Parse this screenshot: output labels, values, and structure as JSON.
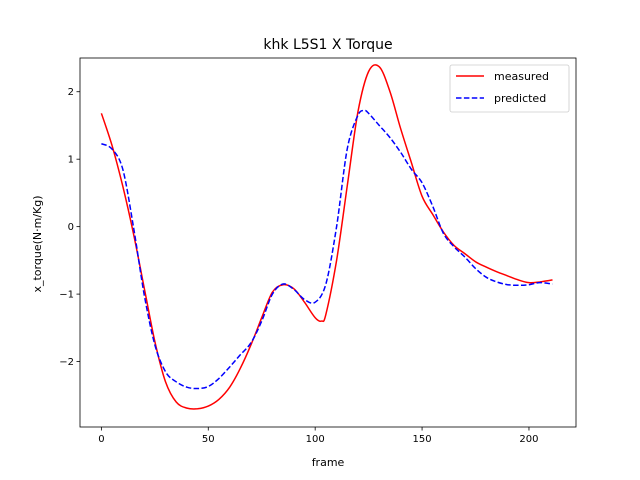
{
  "chart_data": {
    "type": "line",
    "title": "khk L5S1 X Torque",
    "xlabel": "frame",
    "ylabel": "x_torque(N·m/Kg)",
    "xlim": [
      -10,
      222
    ],
    "ylim": [
      -2.97,
      2.5
    ],
    "xticks": [
      0,
      50,
      100,
      150,
      200
    ],
    "xtick_labels": [
      "0",
      "50",
      "100",
      "150",
      "200"
    ],
    "yticks": [
      -2,
      -1,
      0,
      1,
      2
    ],
    "ytick_labels": [
      "−2",
      "−1",
      "0",
      "1",
      "2"
    ],
    "grid": false,
    "legend": "top-right",
    "series": [
      {
        "name": "measured",
        "color": "#ff0000",
        "style": "solid",
        "x": [
          0,
          5,
          10,
          15,
          20,
          25,
          30,
          35,
          40,
          45,
          50,
          55,
          60,
          65,
          70,
          75,
          80,
          85,
          90,
          95,
          100,
          103,
          105,
          110,
          115,
          120,
          125,
          130,
          135,
          140,
          145,
          150,
          155,
          160,
          165,
          170,
          175,
          180,
          185,
          190,
          195,
          200,
          205,
          211
        ],
        "y": [
          1.68,
          1.2,
          0.6,
          -0.1,
          -0.9,
          -1.7,
          -2.3,
          -2.6,
          -2.69,
          -2.7,
          -2.66,
          -2.56,
          -2.38,
          -2.1,
          -1.75,
          -1.35,
          -0.97,
          -0.86,
          -0.92,
          -1.12,
          -1.35,
          -1.4,
          -1.3,
          -0.5,
          0.6,
          1.7,
          2.3,
          2.37,
          2.0,
          1.45,
          0.95,
          0.45,
          0.18,
          -0.08,
          -0.28,
          -0.4,
          -0.52,
          -0.6,
          -0.67,
          -0.73,
          -0.79,
          -0.83,
          -0.82,
          -0.79
        ]
      },
      {
        "name": "predicted",
        "color": "#0000ff",
        "style": "dashed",
        "x": [
          0,
          5,
          10,
          15,
          20,
          25,
          30,
          35,
          40,
          45,
          50,
          55,
          60,
          65,
          70,
          75,
          80,
          85,
          90,
          95,
          100,
          105,
          110,
          115,
          120,
          123,
          125,
          130,
          135,
          140,
          145,
          150,
          155,
          160,
          165,
          170,
          175,
          180,
          185,
          190,
          195,
          200,
          205,
          211
        ],
        "y": [
          1.23,
          1.15,
          0.85,
          0.0,
          -1.0,
          -1.75,
          -2.15,
          -2.3,
          -2.38,
          -2.4,
          -2.37,
          -2.25,
          -2.08,
          -1.9,
          -1.72,
          -1.4,
          -1.0,
          -0.85,
          -0.93,
          -1.08,
          -1.12,
          -0.85,
          0.0,
          1.15,
          1.65,
          1.72,
          1.68,
          1.5,
          1.32,
          1.1,
          0.85,
          0.65,
          0.3,
          -0.1,
          -0.3,
          -0.45,
          -0.62,
          -0.75,
          -0.82,
          -0.86,
          -0.87,
          -0.86,
          -0.83,
          -0.85
        ]
      }
    ]
  }
}
